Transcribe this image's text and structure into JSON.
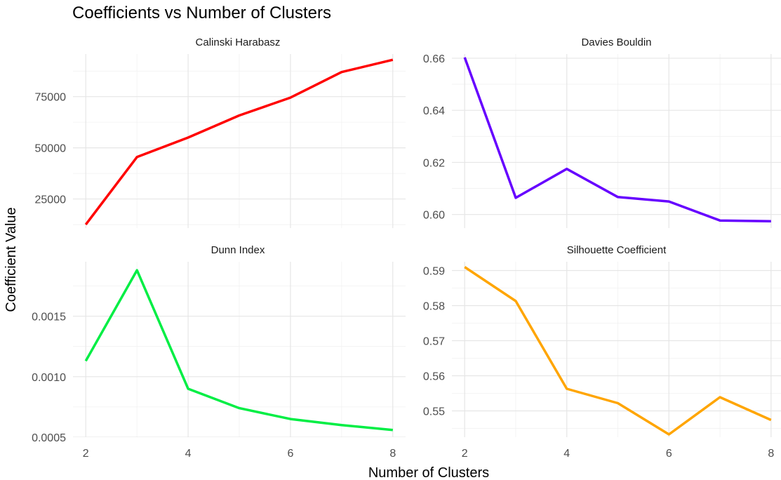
{
  "chart_data": {
    "type": "line",
    "title": "Coefficients vs Number of Clusters",
    "xlabel": "Number of Clusters",
    "ylabel": "Coefficient Value",
    "grid": true,
    "legend": "none",
    "x": [
      2,
      3,
      4,
      5,
      6,
      7,
      8
    ],
    "x_ticks": [
      2,
      4,
      6,
      8
    ],
    "panels": [
      {
        "title": "Calinski Harabasz",
        "color": "#ff0000",
        "ylim": [
          10800,
          95800
        ],
        "y_ticks": [
          25000,
          50000,
          75000
        ],
        "y_tick_labels": [
          "25000",
          "50000",
          "75000"
        ],
        "values": [
          12500,
          45500,
          55000,
          65800,
          74500,
          87000,
          93000
        ]
      },
      {
        "title": "Davies Bouldin",
        "color": "#6600ff",
        "ylim": [
          0.5948,
          0.6616
        ],
        "y_ticks": [
          0.6,
          0.62,
          0.64,
          0.66
        ],
        "y_tick_labels": [
          "0.60",
          "0.62",
          "0.64",
          "0.66"
        ],
        "values": [
          0.6603,
          0.6064,
          0.6175,
          0.6067,
          0.605,
          0.5977,
          0.5974
        ]
      },
      {
        "title": "Dunn Index",
        "color": "#00ee44",
        "ylim": [
          0.0005,
          0.00195
        ],
        "y_ticks": [
          0.0005,
          0.001,
          0.0015
        ],
        "y_tick_labels": [
          "0.0005",
          "0.0010",
          "0.0015"
        ],
        "values": [
          0.00113,
          0.00188,
          0.0009,
          0.00074,
          0.00065,
          0.0006,
          0.00056
        ]
      },
      {
        "title": "Silhouette Coefficient",
        "color": "#ffa500",
        "ylim": [
          0.5425,
          0.5925
        ],
        "y_ticks": [
          0.55,
          0.56,
          0.57,
          0.58,
          0.59
        ],
        "y_tick_labels": [
          "0.55",
          "0.56",
          "0.57",
          "0.58",
          "0.59"
        ],
        "values": [
          0.591,
          0.5813,
          0.5563,
          0.5522,
          0.5433,
          0.5539,
          0.5474
        ]
      }
    ]
  }
}
